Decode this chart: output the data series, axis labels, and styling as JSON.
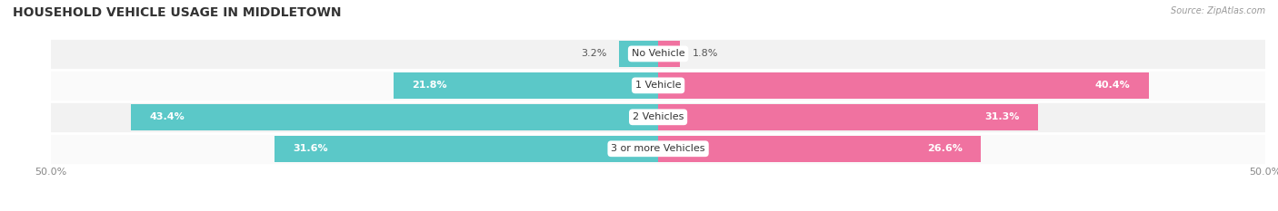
{
  "title": "HOUSEHOLD VEHICLE USAGE IN MIDDLETOWN",
  "source": "Source: ZipAtlas.com",
  "categories": [
    "No Vehicle",
    "1 Vehicle",
    "2 Vehicles",
    "3 or more Vehicles"
  ],
  "owner_values": [
    3.2,
    21.8,
    43.4,
    31.6
  ],
  "renter_values": [
    1.8,
    40.4,
    31.3,
    26.6
  ],
  "owner_color": "#5BC8C8",
  "renter_color": "#F072A0",
  "row_bg_even": "#F2F2F2",
  "row_bg_odd": "#FAFAFA",
  "xlim": 50.0,
  "title_fontsize": 10,
  "value_fontsize": 8,
  "cat_fontsize": 8,
  "tick_fontsize": 8,
  "bar_height": 0.82
}
